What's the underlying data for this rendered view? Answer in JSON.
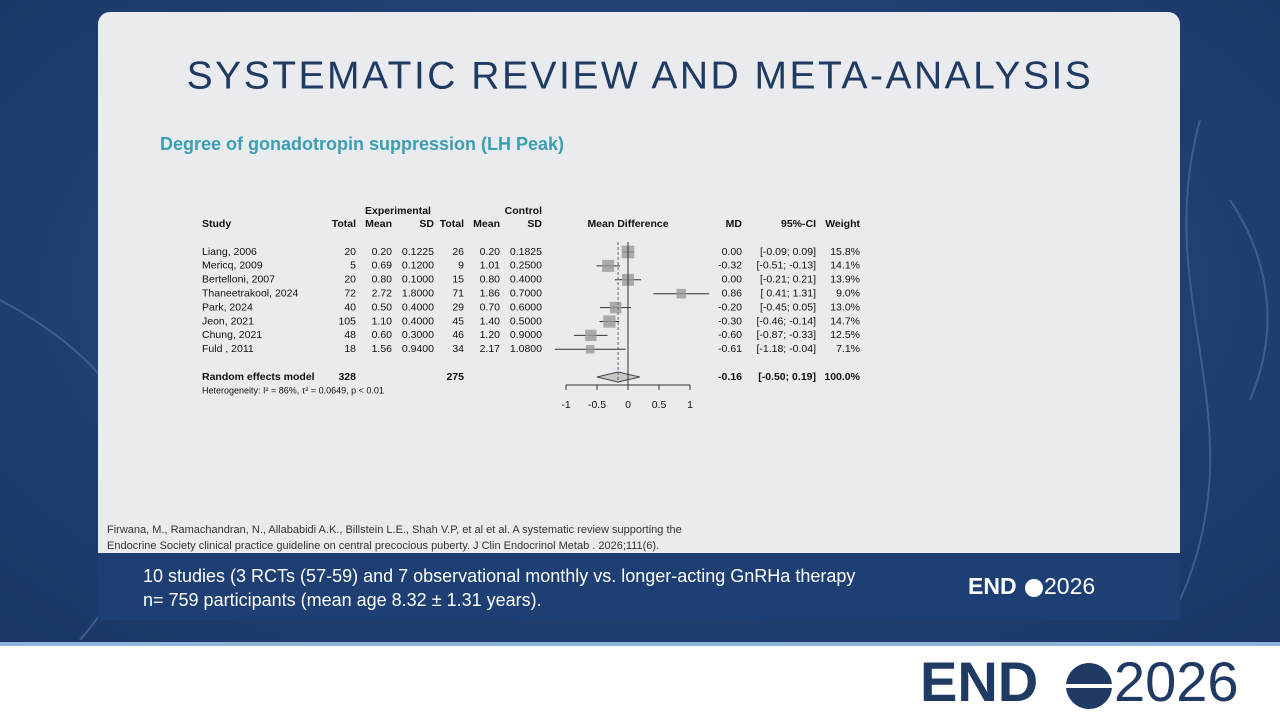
{
  "slide": {
    "title": "SYSTEMATIC REVIEW AND META-ANALYSIS",
    "subtitle": "Degree of gonadotropin suppression (LH Peak)",
    "citation": [
      "Firwana, M., Ramachandran, N., Allababidi A.K., Billstein L.E., Shah V.P, et al et al. A systematic review supporting the",
      "Endocrine Society clinical practice guideline on central precocious puberty. J Clin Endocrinol Metab . 2026;111(6)."
    ],
    "summary": [
      "10 studies (3 RCTs (57-59) and 7 observational monthly vs. longer-acting GnRHa therapy",
      "n= 759 participants (mean age 8.32 ± 1.31 years)."
    ],
    "logo": {
      "left": "END",
      "right": "2026"
    }
  },
  "chart_data": {
    "type": "forest",
    "group_headers": {
      "experimental": "Experimental",
      "control": "Control"
    },
    "headers": {
      "study": "Study",
      "exp_total": "Total",
      "exp_mean": "Mean",
      "exp_sd": "SD",
      "ctrl_total": "Total",
      "ctrl_mean": "Mean",
      "ctrl_sd": "SD",
      "plot": "Mean Difference",
      "md": "MD",
      "ci": "95%-CI",
      "weight": "Weight"
    },
    "studies": [
      {
        "study": "Liang, 2006",
        "exp_total": "20",
        "exp_mean": "0.20",
        "exp_sd": "0.1225",
        "ctrl_total": "26",
        "ctrl_mean": "0.20",
        "ctrl_sd": "0.1825",
        "md": 0,
        "md_label": "0.00",
        "ci": [
          -0.09,
          0.09
        ],
        "ci_label": "[-0.09; 0.09]",
        "weight": 15.8,
        "weight_label": "15.8%"
      },
      {
        "study": "Mericq, 2009",
        "exp_total": "5",
        "exp_mean": "0.69",
        "exp_sd": "0.1200",
        "ctrl_total": "9",
        "ctrl_mean": "1.01",
        "ctrl_sd": "0.2500",
        "md": -0.32,
        "md_label": "-0.32",
        "ci": [
          -0.51,
          -0.13
        ],
        "ci_label": "[-0.51; -0.13]",
        "weight": 14.1,
        "weight_label": "14.1%"
      },
      {
        "study": "Bertelloni, 2007",
        "exp_total": "20",
        "exp_mean": "0.80",
        "exp_sd": "0.1000",
        "ctrl_total": "15",
        "ctrl_mean": "0.80",
        "ctrl_sd": "0.4000",
        "md": 0,
        "md_label": "0.00",
        "ci": [
          -0.21,
          0.21
        ],
        "ci_label": "[-0.21; 0.21]",
        "weight": 13.9,
        "weight_label": "13.9%"
      },
      {
        "study": "Thaneetrakool, 2024",
        "exp_total": "72",
        "exp_mean": "2.72",
        "exp_sd": "1.8000",
        "ctrl_total": "71",
        "ctrl_mean": "1.86",
        "ctrl_sd": "0.7000",
        "md": 0.86,
        "md_label": "0.86",
        "ci": [
          0.41,
          1.31
        ],
        "ci_label": "[ 0.41; 1.31]",
        "weight": 9.0,
        "weight_label": "9.0%"
      },
      {
        "study": "Park, 2024",
        "exp_total": "40",
        "exp_mean": "0.50",
        "exp_sd": "0.4000",
        "ctrl_total": "29",
        "ctrl_mean": "0.70",
        "ctrl_sd": "0.6000",
        "md": -0.2,
        "md_label": "-0.20",
        "ci": [
          -0.45,
          0.05
        ],
        "ci_label": "[-0.45; 0.05]",
        "weight": 13.0,
        "weight_label": "13.0%"
      },
      {
        "study": "Jeon, 2021",
        "exp_total": "105",
        "exp_mean": "1.10",
        "exp_sd": "0.4000",
        "ctrl_total": "45",
        "ctrl_mean": "1.40",
        "ctrl_sd": "0.5000",
        "md": -0.3,
        "md_label": "-0.30",
        "ci": [
          -0.46,
          -0.14
        ],
        "ci_label": "[-0.46; -0.14]",
        "weight": 14.7,
        "weight_label": "14.7%"
      },
      {
        "study": "Chung, 2021",
        "exp_total": "48",
        "exp_mean": "0.60",
        "exp_sd": "0.3000",
        "ctrl_total": "46",
        "ctrl_mean": "1.20",
        "ctrl_sd": "0.9000",
        "md": -0.6,
        "md_label": "-0.60",
        "ci": [
          -0.87,
          -0.33
        ],
        "ci_label": "[-0.87; -0.33]",
        "weight": 12.5,
        "weight_label": "12.5%"
      },
      {
        "study": "Fuld , 2011",
        "exp_total": "18",
        "exp_mean": "1.56",
        "exp_sd": "0.9400",
        "ctrl_total": "34",
        "ctrl_mean": "2.17",
        "ctrl_sd": "1.0800",
        "md": -0.61,
        "md_label": "-0.61",
        "ci": [
          -1.18,
          -0.04
        ],
        "ci_label": "[-1.18; -0.04]",
        "weight": 7.1,
        "weight_label": "7.1%"
      }
    ],
    "pooled": {
      "study": "Random effects model",
      "exp_total": "328",
      "ctrl_total": "275",
      "md": -0.16,
      "md_label": "-0.16",
      "ci": [
        -0.5,
        0.19
      ],
      "ci_label": "[-0.50; 0.19]",
      "weight": 100.0,
      "weight_label": "100.0%"
    },
    "heterogeneity": "Heterogeneity: I² = 86%, τ² = 0.0649, p < 0.01",
    "xlim": [
      -1,
      1
    ],
    "xticks": [
      -1,
      -0.5,
      0,
      0.5,
      1
    ]
  }
}
